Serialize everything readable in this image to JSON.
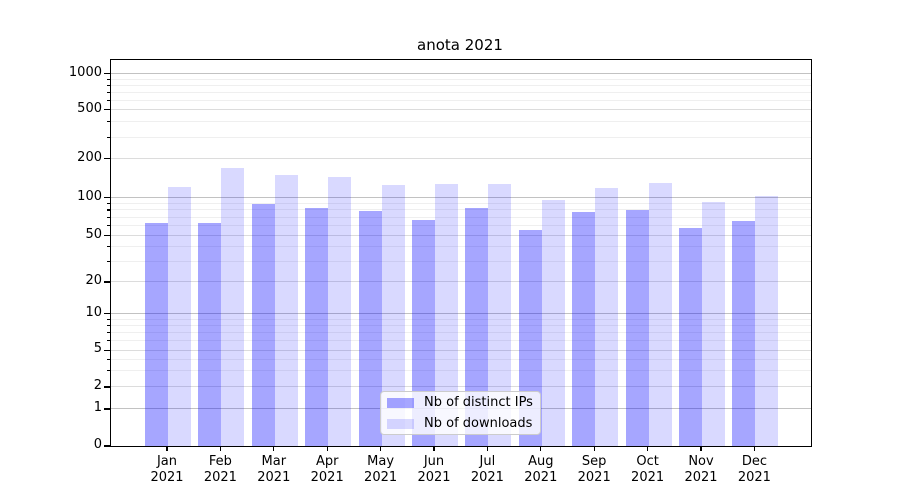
{
  "title": "anota 2021",
  "legend": {
    "items": [
      {
        "label": "Nb of distinct IPs",
        "color": "rgba(0,0,255,0.35)"
      },
      {
        "label": "Nb of downloads",
        "color": "rgba(0,0,255,0.15)"
      }
    ]
  },
  "chart_data": {
    "type": "bar",
    "title": "anota 2021",
    "categories": [
      "Jan",
      "Feb",
      "Mar",
      "Apr",
      "May",
      "Jun",
      "Jul",
      "Aug",
      "Sep",
      "Oct",
      "Nov",
      "Dec"
    ],
    "category_year": "2021",
    "series": [
      {
        "name": "Nb of distinct IPs",
        "color": "rgba(0,0,255,0.35)",
        "values": [
          63,
          63,
          90,
          83,
          79,
          67,
          83,
          55,
          77,
          80,
          58,
          65
        ]
      },
      {
        "name": "Nb of downloads",
        "color": "rgba(0,0,255,0.15)",
        "values": [
          122,
          170,
          150,
          144,
          125,
          128,
          128,
          96,
          119,
          129,
          93,
          104
        ]
      }
    ],
    "yscale": "symlog",
    "y_ticks": [
      0,
      1,
      2,
      5,
      10,
      20,
      50,
      100,
      200,
      500,
      1000
    ],
    "ylim": [
      0,
      1300
    ],
    "xlabel": "",
    "ylabel": "",
    "grid": "horizontal major+minor",
    "legend_position": "inside lower-center"
  },
  "colors": {
    "bar_distinct_ips": "rgba(0,0,255,0.35)",
    "bar_downloads": "rgba(0,0,255,0.15)",
    "grid_major": "#c2c2c2",
    "grid_mid": "#dcdcdc",
    "grid_minor": "#efefef",
    "axis": "#000000",
    "background": "#ffffff"
  }
}
